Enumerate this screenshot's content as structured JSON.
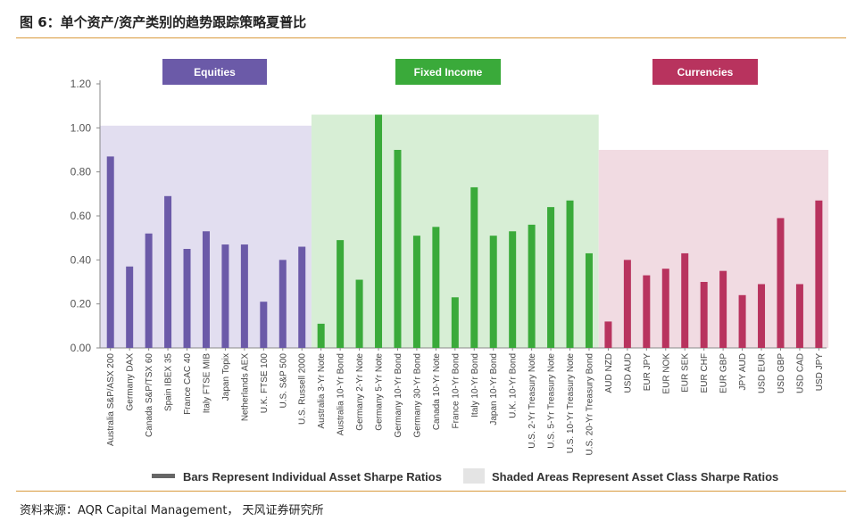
{
  "figure": {
    "title": "图 6：单个资产/资产类别的趋势跟踪策略夏普比",
    "source": "资料来源：AQR Capital Management，  天风证券研究所"
  },
  "chart_data": {
    "type": "bar",
    "ylim": [
      0,
      1.2
    ],
    "yticks": [
      "1.20",
      "1.00",
      "0.80",
      "0.60",
      "0.40",
      "0.20",
      "0.00"
    ],
    "ytick_values": [
      1.2,
      1.0,
      0.8,
      0.6,
      0.4,
      0.2,
      0.0
    ],
    "legend": {
      "bars": "Bars Represent Individual Asset Sharpe Ratios",
      "shaded": "Shaded Areas Represent Asset Class Sharpe Ratios"
    },
    "groups": [
      {
        "name": "Equities",
        "bar_color": "#6b5aa8",
        "label_color": "#6b5aa8",
        "shade_color": "#e2def0",
        "class_sharpe": 1.01,
        "categories": [
          "Australia S&P/ASX 200",
          "Germany DAX",
          "Canada S&P/TSX 60",
          "Spain IBEX 35",
          "France CAC 40",
          "Italy FTSE MIB",
          "Japan Topix",
          "Netherlands AEX",
          "U.K. FTSE 100",
          "U.S. S&P 500",
          "U.S. Russell 2000"
        ],
        "values": [
          0.87,
          0.37,
          0.52,
          0.69,
          0.45,
          0.53,
          0.47,
          0.47,
          0.21,
          0.4,
          0.46
        ]
      },
      {
        "name": "Fixed Income",
        "bar_color": "#3aaa3a",
        "label_color": "#3aaa3a",
        "shade_color": "#d7eed5",
        "class_sharpe": 1.06,
        "categories": [
          "Australia 3-Yr Note",
          "Australia 10-Yr Bond",
          "Germany 2-Yr Note",
          "Germany 5-Yr Note",
          "Germany 10-Yr Bond",
          "Germany 30-Yr Bond",
          "Canada 10-Yr Note",
          "France 10-Yr Bond",
          "Italy 10-Yr Bond",
          "Japan 10-Yr Bond",
          "U.K. 10-Yr Bond",
          "U.S. 2-Yr Treasury Note",
          "U.S. 5-Yr Treasury Note",
          "U.S. 10-Yr Treasury Note",
          "U.S. 20-Yr Treasury Bond"
        ],
        "values": [
          0.11,
          0.49,
          0.31,
          1.06,
          0.9,
          0.51,
          0.55,
          0.23,
          0.73,
          0.51,
          0.53,
          0.56,
          0.64,
          0.67,
          0.43
        ]
      },
      {
        "name": "Currencies",
        "bar_color": "#b8335e",
        "label_color": "#b8335e",
        "shade_color": "#f1dbe2",
        "class_sharpe": 0.9,
        "categories": [
          "AUD NZD",
          "USD AUD",
          "EUR JPY",
          "EUR NOK",
          "EUR SEK",
          "EUR CHF",
          "EUR GBP",
          "JPY AUD",
          "USD EUR",
          "USD GBP",
          "USD CAD",
          "USD JPY"
        ],
        "values": [
          0.12,
          0.4,
          0.33,
          0.36,
          0.43,
          0.3,
          0.35,
          0.24,
          0.29,
          0.59,
          0.29,
          0.67
        ]
      }
    ]
  }
}
